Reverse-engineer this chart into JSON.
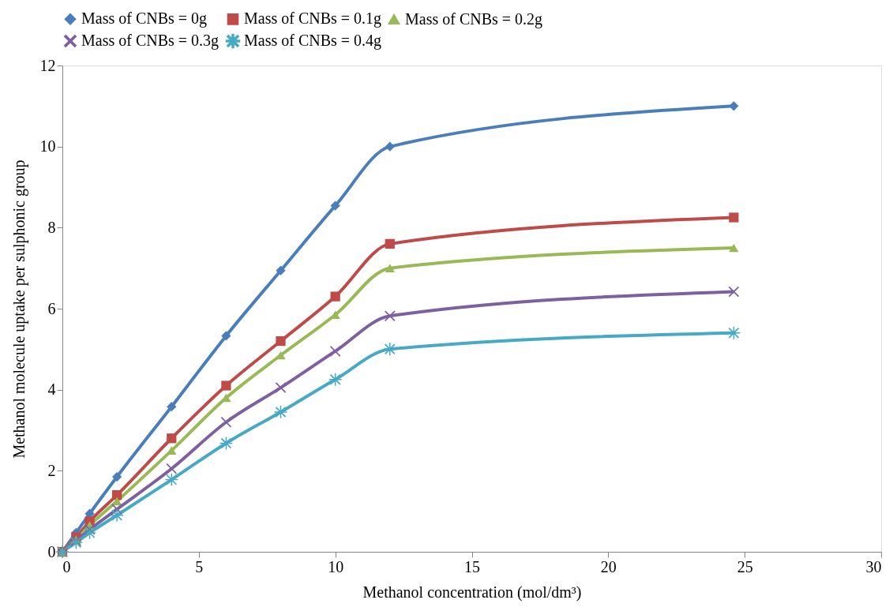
{
  "chart_data": {
    "type": "line",
    "xlabel": "Methanol concentration (mol/dm³)",
    "ylabel": "Methanol molecule uptake per sulphonic group",
    "x": [
      0,
      0.5,
      1,
      2,
      4,
      6,
      8,
      10,
      12,
      24.6
    ],
    "series": [
      {
        "name": "Mass of CNBs = 0g",
        "color": "#4a7ebb",
        "marker": "diamond",
        "values": [
          0,
          0.47,
          0.94,
          1.85,
          3.58,
          5.33,
          6.94,
          8.54,
          10.0,
          11.0
        ]
      },
      {
        "name": "Mass of CNBs = 0.1g",
        "color": "#be4b48",
        "marker": "square",
        "values": [
          0,
          0.36,
          0.75,
          1.4,
          2.8,
          4.1,
          5.2,
          6.3,
          7.6,
          8.25
        ]
      },
      {
        "name": "Mass of CNBs = 0.2g",
        "color": "#98b954",
        "marker": "triangle",
        "values": [
          0,
          0.3,
          0.65,
          1.25,
          2.5,
          3.8,
          4.85,
          5.85,
          7.0,
          7.5
        ]
      },
      {
        "name": "Mass of CNBs = 0.3g",
        "color": "#7d60a0",
        "marker": "cross",
        "values": [
          0,
          0.27,
          0.55,
          1.05,
          2.05,
          3.2,
          4.05,
          4.95,
          5.82,
          6.42
        ]
      },
      {
        "name": "Mass of CNBs = 0.4g",
        "color": "#46aac5",
        "marker": "star",
        "values": [
          0,
          0.23,
          0.47,
          0.9,
          1.78,
          2.68,
          3.45,
          4.25,
          5.0,
          5.4
        ]
      }
    ],
    "xlim": [
      0,
      30
    ],
    "xticks": [
      0,
      5,
      10,
      15,
      20,
      25,
      30
    ],
    "ylim": [
      0,
      12
    ],
    "yticks": [
      0,
      2,
      4,
      6,
      8,
      10,
      12
    ],
    "grid": false,
    "legend": "top",
    "line_style": "solid"
  }
}
